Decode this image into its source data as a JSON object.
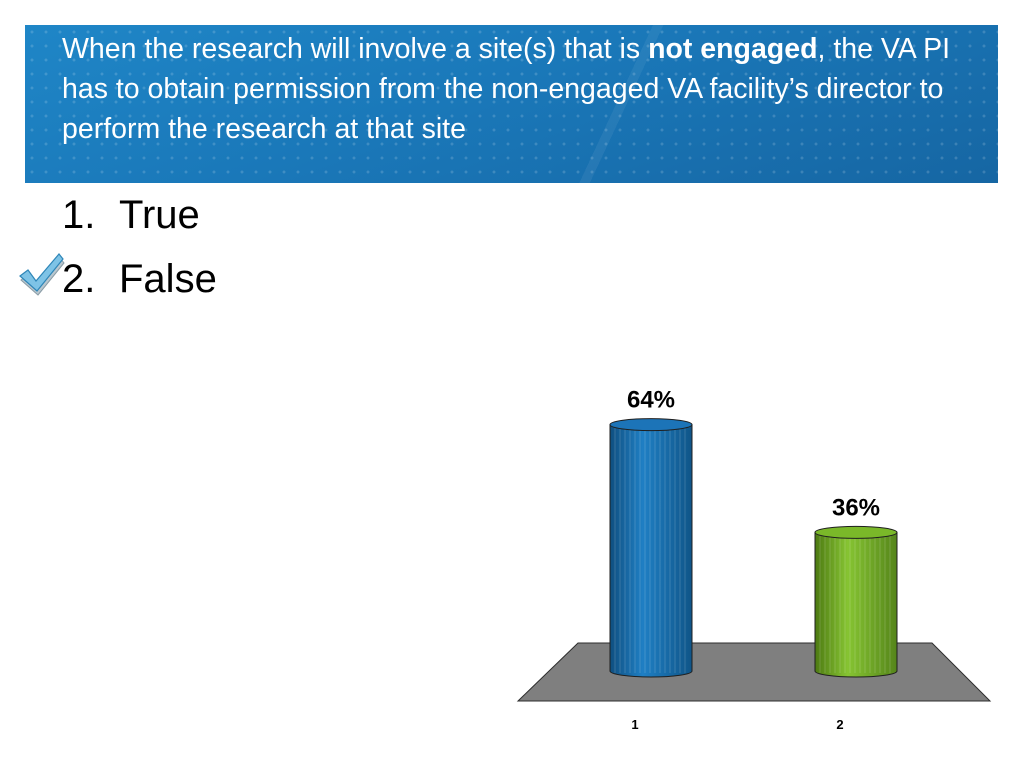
{
  "question": {
    "part1": "When the research will involve a site(s) that is ",
    "bold": "not engaged",
    "part2": ", the VA PI has to obtain permission from the non-engaged VA facility’s director to perform the research at that site"
  },
  "answers": [
    {
      "number": "1.",
      "label": "True",
      "correct": false
    },
    {
      "number": "2.",
      "label": "False",
      "correct": true
    }
  ],
  "icons": {
    "correct_mark": "check-mark-icon"
  },
  "colors": {
    "banner": "#1a78b9",
    "bar_1": "#1c74b8",
    "bar_2": "#7ab829",
    "floor": "#7f7f7f"
  },
  "chart_data": {
    "type": "bar",
    "categories": [
      "1",
      "2"
    ],
    "values": [
      64,
      36
    ],
    "data_labels": [
      "64%",
      "36%"
    ],
    "ylim": [
      0,
      100
    ],
    "colors": [
      "#1c74b8",
      "#7ab829"
    ],
    "style": "3d-cylinder",
    "grid": false,
    "legend": false
  }
}
